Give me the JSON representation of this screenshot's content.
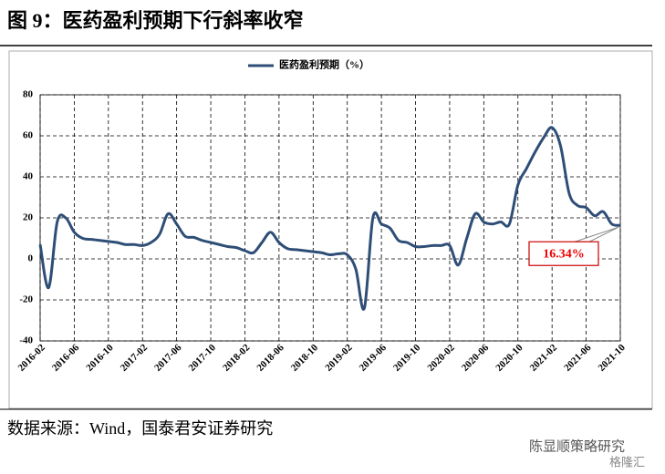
{
  "chart_data": {
    "type": "line",
    "title": "图 9：医药盈利预期下行斜率收窄",
    "source": "数据来源：Wind，国泰君安证券研究",
    "watermark": "陈显顺策略研究",
    "watermark2": "格隆汇",
    "categories": [
      "2016-02",
      null,
      null,
      null,
      "2016-06",
      null,
      null,
      null,
      "2016-10",
      null,
      null,
      null,
      "2017-02",
      null,
      null,
      null,
      "2017-06",
      null,
      null,
      null,
      "2017-10",
      null,
      null,
      null,
      "2018-02",
      null,
      null,
      null,
      "2018-06",
      null,
      null,
      null,
      "2018-10",
      null,
      null,
      null,
      "2019-02",
      null,
      null,
      null,
      "2019-06",
      null,
      null,
      null,
      "2019-10",
      null,
      null,
      null,
      "2020-02",
      null,
      null,
      null,
      "2020-06",
      null,
      null,
      null,
      "2020-10",
      null,
      null,
      null,
      "2021-02",
      null,
      null,
      null,
      "2021-06",
      null,
      null,
      null,
      "2021-10"
    ],
    "series": [
      {
        "name": "医药盈利预期（%）",
        "color": "#2e4e77",
        "values": [
          7,
          -14,
          18,
          20,
          13,
          10,
          9.5,
          9,
          8.5,
          8,
          7,
          7,
          6.5,
          8,
          12,
          22,
          17,
          11,
          10.5,
          9,
          8,
          7,
          6,
          5.5,
          4,
          3,
          8,
          13,
          8,
          5,
          4.5,
          4,
          3.5,
          3,
          2,
          2.5,
          2,
          -5,
          -24,
          20,
          17,
          15,
          9,
          8,
          6,
          6,
          6.5,
          6.5,
          6.5,
          -3,
          10,
          22,
          18,
          17,
          18,
          17,
          36,
          44,
          52,
          59,
          64,
          55,
          32,
          26,
          25,
          21,
          23,
          17,
          16.34
        ],
        "value_labels": [
          null,
          null,
          null,
          null,
          null,
          null,
          null,
          null,
          null,
          null,
          null,
          null,
          null,
          null,
          null,
          null,
          null,
          null,
          null,
          null,
          null,
          null,
          null,
          null,
          null,
          null,
          null,
          null,
          null,
          null,
          null,
          null,
          null,
          null,
          null,
          null,
          null,
          null,
          null,
          null,
          null,
          null,
          null,
          null,
          null,
          null,
          null,
          null,
          null,
          null,
          null,
          null,
          null,
          null,
          null,
          null,
          null,
          null,
          null,
          null,
          null,
          null,
          null,
          null,
          null,
          null,
          null,
          null,
          "16.34%"
        ]
      }
    ],
    "ylim": [
      -40,
      80
    ],
    "yticks": [
      -40,
      -20,
      0,
      20,
      40,
      60,
      80
    ],
    "grid": true,
    "legend": "top"
  }
}
